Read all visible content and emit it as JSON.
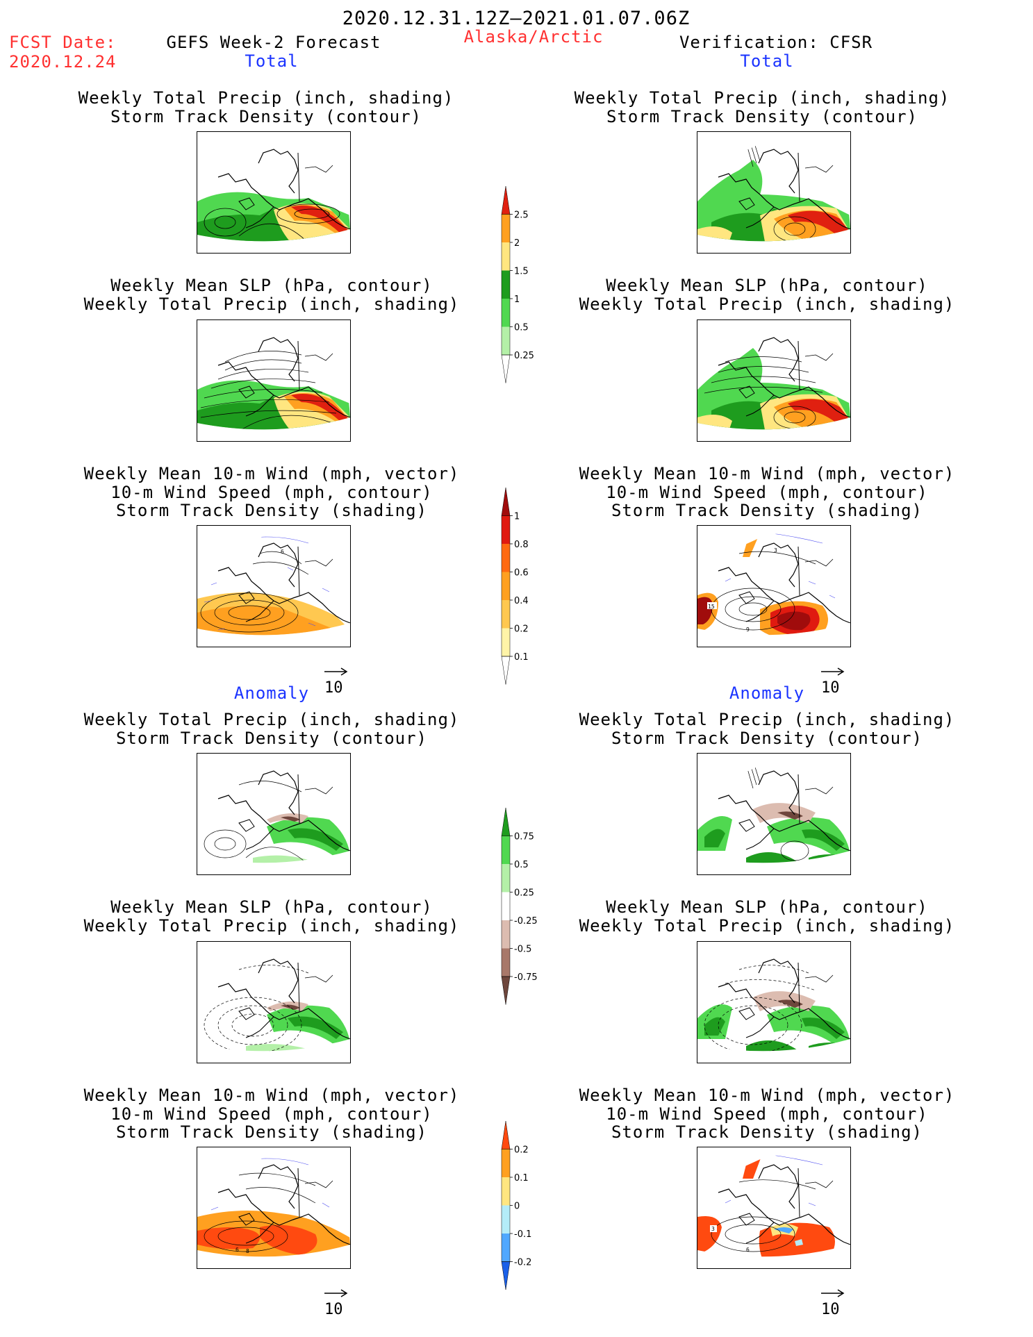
{
  "header": {
    "date_range": "2020.12.31.12Z–2021.01.07.06Z",
    "fcst_label": "FCST Date:",
    "fcst_date": "2020.12.24",
    "left_title": "GEFS Week-2 Forecast",
    "region": "Alaska/Arctic",
    "right_title": "Verification: CFSR"
  },
  "sections": {
    "total": "Total",
    "anomaly": "Anomaly"
  },
  "panel_titles": {
    "precip_storm": [
      "Weekly Total Precip (inch, shading)",
      "Storm Track Density (contour)"
    ],
    "slp_precip": [
      "Weekly Mean SLP (hPa, contour)",
      "Weekly Total Precip (inch, shading)"
    ],
    "wind_storm": [
      "Weekly Mean 10-m Wind (mph, vector)",
      "10-m Wind Speed (mph, contour)",
      "Storm Track Density (shading)"
    ]
  },
  "vector_ref": "10",
  "contour_labels": {
    "a": "6",
    "b": "15",
    "c": "3",
    "d": "9",
    "e": "6",
    "f": "8",
    "g": "3",
    "h": "6"
  },
  "colorbars": {
    "precip_total": {
      "labels": [
        "0.25",
        "0.5",
        "1",
        "1.5",
        "2",
        "2.5"
      ],
      "colors": [
        "#b4f0a8",
        "#50d850",
        "#1e9c1e",
        "#ffe680",
        "#ffa020",
        "#e02010"
      ]
    },
    "storm_total": {
      "labels": [
        "0.1",
        "0.2",
        "0.4",
        "0.6",
        "0.8",
        "1"
      ],
      "colors": [
        "#fff4a8",
        "#ffc850",
        "#ffa020",
        "#ff6a10",
        "#e01a10",
        "#a00c0c"
      ]
    },
    "precip_anom": {
      "labels": [
        "0.75",
        "0.5",
        "0.25",
        "-0.25",
        "-0.5",
        "-0.75"
      ],
      "colors": [
        "#1e9c1e",
        "#50d850",
        "#b4f0a8",
        "#ffffff",
        "#dcbcb0",
        "#a8786a",
        "#6e463c"
      ]
    },
    "storm_anom": {
      "labels": [
        "0.2",
        "0.1",
        "0",
        "-0.1",
        "-0.2"
      ],
      "colors": [
        "#ff4a10",
        "#ffa020",
        "#ffe680",
        "#b4ecf8",
        "#50a8ff",
        "#1a60e8"
      ]
    }
  }
}
